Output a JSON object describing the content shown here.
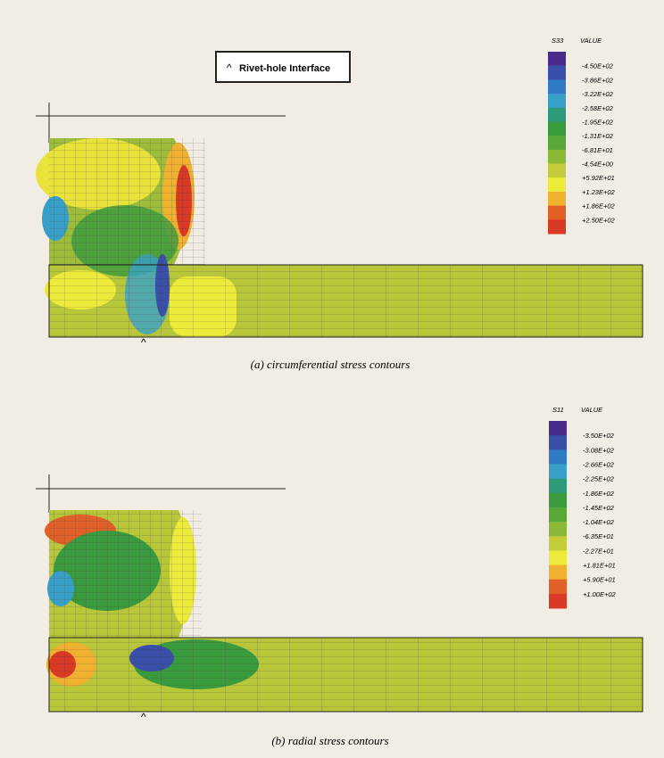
{
  "figure_a": {
    "label_box": "Rivet-hole Interface",
    "legend": {
      "header": "S33",
      "value_header": "VALUE",
      "labels": [
        "-4.50E+02",
        "-3.86E+02",
        "-3.22E+02",
        "-2.58E+02",
        "-1.95E+02",
        "-1.31E+02",
        "-6.81E+01",
        "-4.54E+00",
        "+5.92E+01",
        "+1.23E+02",
        "+1.86E+02",
        "+2.50E+02"
      ],
      "colors": [
        "#4a2a8c",
        "#3a4fa8",
        "#2f7cc4",
        "#38a0c8",
        "#2f9a7a",
        "#3a9a3e",
        "#58a838",
        "#8cb83a",
        "#c4cc3a",
        "#ecea3a",
        "#f0b030",
        "#e06028",
        "#d83a26"
      ]
    },
    "caption": "(a) circumferential stress contours"
  },
  "figure_b": {
    "legend": {
      "header": "S11",
      "value_header": "VALUE",
      "labels": [
        "-3.50E+02",
        "-3.08E+02",
        "-2.66E+02",
        "-2.25E+02",
        "-1.86E+02",
        "-1.45E+02",
        "-1.04E+02",
        "-6.35E+01",
        "-2.27E+01",
        "+1.81E+01",
        "+5.90E+01",
        "+1.00E+02"
      ],
      "colors": [
        "#4a2a8c",
        "#3a4fa8",
        "#2f7cc4",
        "#38a0c8",
        "#2f9a7a",
        "#3a9a3e",
        "#58a838",
        "#8cb83a",
        "#c4cc3a",
        "#ecea3a",
        "#f0b030",
        "#e06028",
        "#d83a26"
      ]
    },
    "caption": "(b) radial stress contours"
  }
}
